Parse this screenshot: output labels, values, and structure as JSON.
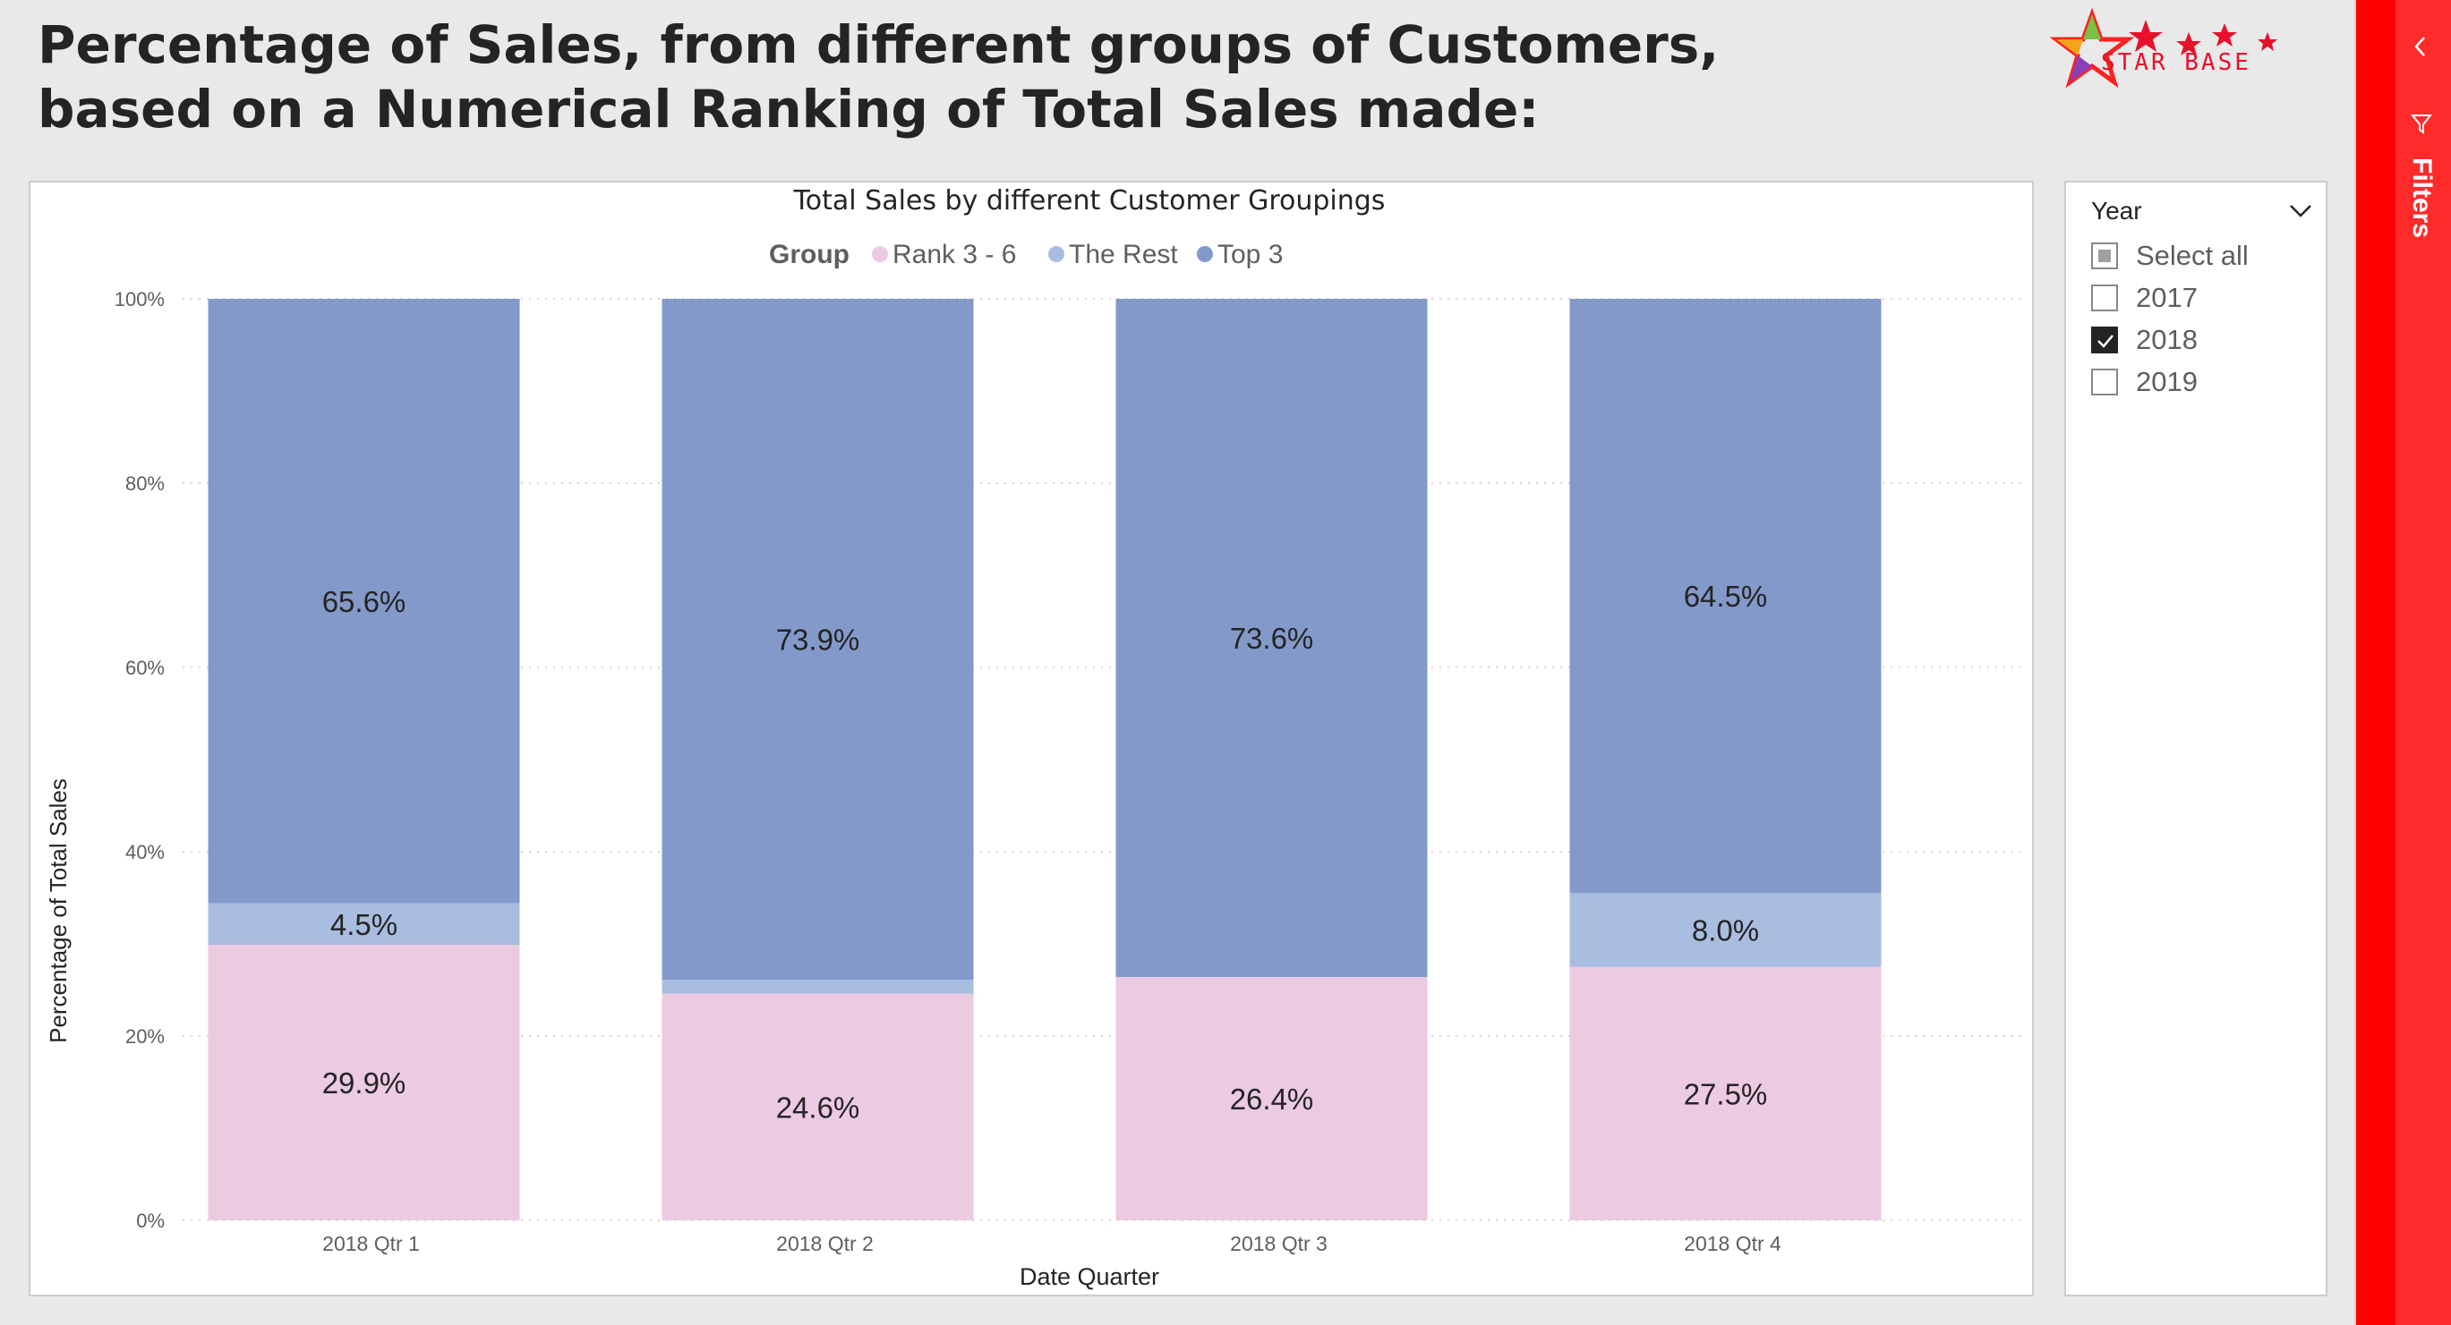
{
  "report": {
    "title_line1": "Percentage of Sales, from different groups of Customers,",
    "title_line2": "based on a Numerical Ranking of Total Sales made:"
  },
  "logo": {
    "text": "STAR BASE"
  },
  "colors": {
    "top3": "#8399ca",
    "the_rest": "#a8bde0",
    "rank_3_6": "#ebcae2",
    "filters_pane": "#ff2b2b"
  },
  "chart_data": {
    "type": "bar",
    "stacked": "100%",
    "title": "Total Sales by different Customer Groupings",
    "legend_title": "Group",
    "legend_position": "top-center",
    "xlabel": "Date Quarter",
    "ylabel": "Percentage of Total Sales",
    "ylim": [
      0,
      100
    ],
    "yticks": [
      "0%",
      "20%",
      "40%",
      "60%",
      "80%",
      "100%"
    ],
    "grid": true,
    "categories": [
      "2018 Qtr 1",
      "2018 Qtr 2",
      "2018 Qtr 3",
      "2018 Qtr 4"
    ],
    "series": [
      {
        "name": "Rank 3 - 6",
        "values": [
          29.9,
          24.6,
          26.4,
          27.5
        ],
        "labels": [
          "29.9%",
          "24.6%",
          "26.4%",
          "27.5%"
        ],
        "color": "#ebcae2"
      },
      {
        "name": "The Rest",
        "values": [
          4.5,
          1.5,
          0.0,
          8.0
        ],
        "labels": [
          "4.5%",
          "",
          "",
          "8.0%"
        ],
        "color": "#a8bde0"
      },
      {
        "name": "Top 3",
        "values": [
          65.6,
          73.9,
          73.6,
          64.5
        ],
        "labels": [
          "65.6%",
          "73.9%",
          "73.6%",
          "64.5%"
        ],
        "color": "#8399ca"
      }
    ]
  },
  "slicer": {
    "title": "Year",
    "items": [
      {
        "label": "Select all",
        "state": "partial"
      },
      {
        "label": "2017",
        "state": "unchecked"
      },
      {
        "label": "2018",
        "state": "checked"
      },
      {
        "label": "2019",
        "state": "unchecked"
      }
    ]
  },
  "filters_pane": {
    "label": "Filters"
  }
}
